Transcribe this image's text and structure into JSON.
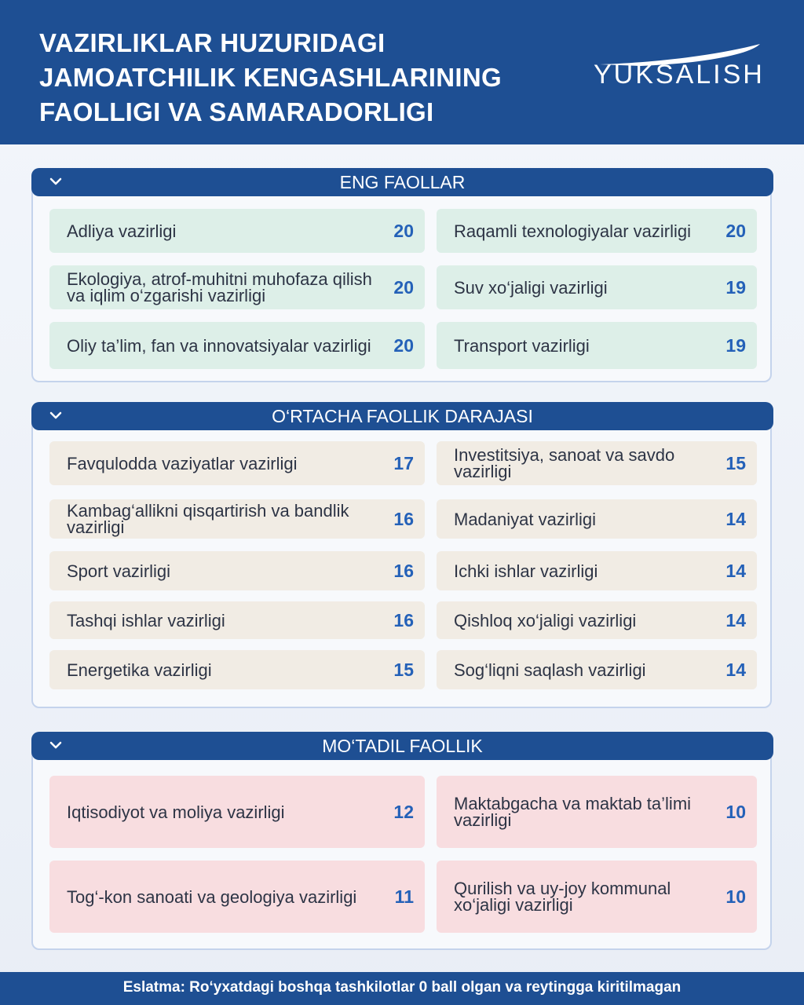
{
  "header": {
    "title_lines": [
      "VAZIRLIKLAR HUZURIDAGI",
      "JAMOATCHILIK KENGASHLARINING",
      "FAOLLIGI  VA SAMARADORLIGI"
    ],
    "logo_text": "YUKSALISH"
  },
  "sections": [
    {
      "title": "ENG FAOLLAR",
      "color": "#ddefe8",
      "items": [
        {
          "name": "Adliya vazirligi",
          "score": "20"
        },
        {
          "name": "Raqamli texnologiyalar vazirligi",
          "score": "20"
        },
        {
          "name": "Ekologiya, atrof-muhitni muhofaza qilish va iqlim o‘zgarishi vazirligi",
          "score": "20"
        },
        {
          "name": "Suv xo‘jaligi vazirligi",
          "score": "19"
        },
        {
          "name": "Oliy ta’lim, fan va innovatsiyalar vazirligi",
          "score": "20"
        },
        {
          "name": "Transport vazirligi",
          "score": "19"
        }
      ]
    },
    {
      "title": "O‘RTACHA FAOLLIK DARAJASI",
      "color": "#f1ece4",
      "items": [
        {
          "name": "Favqulodda vaziyatlar vazirligi",
          "score": "17"
        },
        {
          "name": "Investitsiya, sanoat va savdo vazirligi",
          "score": "15"
        },
        {
          "name": "Kambag‘allikni qisqartirish va bandlik vazirligi",
          "score": "16"
        },
        {
          "name": "Madaniyat vazirligi",
          "score": "14"
        },
        {
          "name": "Sport vazirligi",
          "score": "16"
        },
        {
          "name": "Ichki ishlar vazirligi",
          "score": "14"
        },
        {
          "name": "Tashqi ishlar vazirligi",
          "score": "16"
        },
        {
          "name": "Qishloq xo‘jaligi vazirligi",
          "score": "14"
        },
        {
          "name": "Energetika vazirligi",
          "score": "15"
        },
        {
          "name": "Sog‘liqni saqlash vazirligi",
          "score": "14"
        }
      ]
    },
    {
      "title": "MO‘TADIL FAOLLIK",
      "color": "#f8dde0",
      "items": [
        {
          "name": "Iqtisodiyot va moliya vazirligi",
          "score": "12"
        },
        {
          "name": "Maktabgacha va maktab ta’limi vazirligi",
          "score": "10"
        },
        {
          "name": "Tog‘-kon sanoati va geologiya vazirligi",
          "score": "11"
        },
        {
          "name": "Qurilish va uy-joy kommunal xo‘jaligi vazirligi",
          "score": "10"
        }
      ]
    }
  ],
  "footer": {
    "note": "Eslatma: Ro‘yxatdagi boshqa tashkilotlar 0 ball olgan va reytingga kiritilmagan"
  },
  "colors": {
    "brand_blue": "#1e4f93",
    "score_blue": "#2461b8"
  }
}
